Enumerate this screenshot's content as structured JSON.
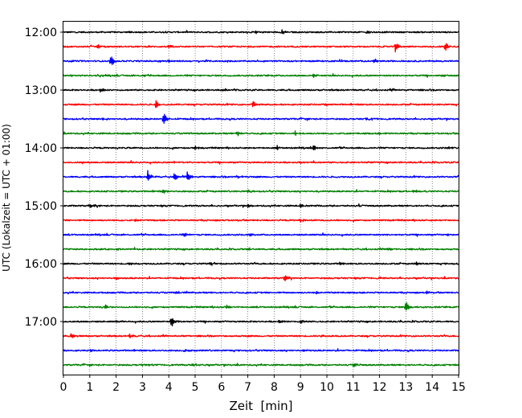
{
  "chart_data": {
    "type": "line",
    "title": "",
    "xlabel": "Zeit  [min]",
    "ylabel": "UTC (Lokalzeit = UTC + 01:00)",
    "xlim": [
      0,
      15
    ],
    "x_ticks": [
      0,
      1,
      2,
      3,
      4,
      5,
      6,
      7,
      8,
      9,
      10,
      11,
      12,
      13,
      14,
      15
    ],
    "y_tick_labels": [
      "12:00",
      "13:00",
      "14:00",
      "15:00",
      "16:00",
      "17:00"
    ],
    "grid": "vertical-dotted",
    "trace_colors": [
      "#000000",
      "#ff0000",
      "#0000ff",
      "#008000"
    ],
    "traces": [
      {
        "start": "12:00",
        "color": "#000000",
        "events": [
          {
            "t": 2.5,
            "amp": 0.22
          },
          {
            "t": 7.3,
            "amp": 0.3
          },
          {
            "t": 8.3,
            "amp": 0.35
          },
          {
            "t": 11.5,
            "amp": 0.25
          },
          {
            "t": 15.0,
            "amp": 0.3
          }
        ]
      },
      {
        "start": "12:15",
        "color": "#ff0000",
        "events": [
          {
            "t": 1.3,
            "amp": 0.3
          },
          {
            "t": 4.0,
            "amp": 0.2
          },
          {
            "t": 12.6,
            "amp": 0.7
          },
          {
            "t": 14.5,
            "amp": 0.75
          }
        ]
      },
      {
        "start": "12:30",
        "color": "#0000ff",
        "events": [
          {
            "t": 1.8,
            "amp": 0.95
          },
          {
            "t": 4.0,
            "amp": 0.2
          },
          {
            "t": 11.8,
            "amp": 0.3
          }
        ]
      },
      {
        "start": "12:45",
        "color": "#008000",
        "events": [
          {
            "t": 3.0,
            "amp": 0.2
          },
          {
            "t": 9.5,
            "amp": 0.2
          },
          {
            "t": 14.4,
            "amp": 0.2
          }
        ]
      },
      {
        "start": "13:00",
        "color": "#000000",
        "events": [
          {
            "t": 1.4,
            "amp": 0.35
          },
          {
            "t": 6.0,
            "amp": 0.2
          },
          {
            "t": 12.5,
            "amp": 0.25
          }
        ]
      },
      {
        "start": "13:15",
        "color": "#ff0000",
        "events": [
          {
            "t": 3.5,
            "amp": 0.75
          },
          {
            "t": 7.2,
            "amp": 0.45
          },
          {
            "t": 10.0,
            "amp": 0.2
          }
        ]
      },
      {
        "start": "13:30",
        "color": "#0000ff",
        "events": [
          {
            "t": 1.5,
            "amp": 0.2
          },
          {
            "t": 3.8,
            "amp": 0.95
          },
          {
            "t": 11.5,
            "amp": 0.2
          }
        ]
      },
      {
        "start": "13:45",
        "color": "#008000",
        "events": [
          {
            "t": 6.6,
            "amp": 0.35
          },
          {
            "t": 8.8,
            "amp": 0.35
          },
          {
            "t": 12.0,
            "amp": 0.2
          }
        ]
      },
      {
        "start": "14:00",
        "color": "#000000",
        "events": [
          {
            "t": 5.0,
            "amp": 0.25
          },
          {
            "t": 8.1,
            "amp": 0.3
          },
          {
            "t": 9.5,
            "amp": 0.35
          },
          {
            "t": 14.6,
            "amp": 0.25
          }
        ]
      },
      {
        "start": "14:15",
        "color": "#ff0000",
        "events": [
          {
            "t": 4.2,
            "amp": 0.12
          },
          {
            "t": 9.0,
            "amp": 0.12
          }
        ]
      },
      {
        "start": "14:30",
        "color": "#0000ff",
        "events": [
          {
            "t": 3.2,
            "amp": 0.9
          },
          {
            "t": 4.2,
            "amp": 0.75
          },
          {
            "t": 4.7,
            "amp": 0.7
          },
          {
            "t": 6.6,
            "amp": 0.2
          }
        ]
      },
      {
        "start": "14:45",
        "color": "#008000",
        "events": [
          {
            "t": 3.8,
            "amp": 0.25
          },
          {
            "t": 7.0,
            "amp": 0.25
          },
          {
            "t": 13.3,
            "amp": 0.3
          }
        ]
      },
      {
        "start": "15:00",
        "color": "#000000",
        "events": [
          {
            "t": 1.0,
            "amp": 0.25
          },
          {
            "t": 7.0,
            "amp": 0.25
          },
          {
            "t": 9.0,
            "amp": 0.2
          },
          {
            "t": 11.2,
            "amp": 0.25
          }
        ]
      },
      {
        "start": "15:15",
        "color": "#ff0000",
        "events": [
          {
            "t": 2.7,
            "amp": 0.2
          },
          {
            "t": 9.0,
            "amp": 0.2
          }
        ]
      },
      {
        "start": "15:30",
        "color": "#0000ff",
        "events": [
          {
            "t": 4.6,
            "amp": 0.3
          },
          {
            "t": 7.1,
            "amp": 0.3
          },
          {
            "t": 14.6,
            "amp": 0.2
          }
        ]
      },
      {
        "start": "15:45",
        "color": "#008000",
        "events": [
          {
            "t": 2.0,
            "amp": 0.2
          },
          {
            "t": 7.0,
            "amp": 0.2
          },
          {
            "t": 12.3,
            "amp": 0.25
          }
        ]
      },
      {
        "start": "16:00",
        "color": "#000000",
        "events": [
          {
            "t": 2.5,
            "amp": 0.25
          },
          {
            "t": 5.6,
            "amp": 0.25
          },
          {
            "t": 10.5,
            "amp": 0.25
          },
          {
            "t": 13.4,
            "amp": 0.25
          }
        ]
      },
      {
        "start": "16:15",
        "color": "#ff0000",
        "events": [
          {
            "t": 2.0,
            "amp": 0.2
          },
          {
            "t": 8.4,
            "amp": 0.5
          },
          {
            "t": 12.0,
            "amp": 0.2
          }
        ]
      },
      {
        "start": "16:30",
        "color": "#0000ff",
        "events": [
          {
            "t": 4.3,
            "amp": 0.2
          },
          {
            "t": 9.6,
            "amp": 0.2
          },
          {
            "t": 13.8,
            "amp": 0.2
          }
        ]
      },
      {
        "start": "16:45",
        "color": "#008000",
        "events": [
          {
            "t": 1.6,
            "amp": 0.4
          },
          {
            "t": 6.2,
            "amp": 0.3
          },
          {
            "t": 13.0,
            "amp": 0.95
          }
        ]
      },
      {
        "start": "17:00",
        "color": "#000000",
        "events": [
          {
            "t": 2.0,
            "amp": 0.2
          },
          {
            "t": 4.1,
            "amp": 1.0
          },
          {
            "t": 8.2,
            "amp": 0.3
          },
          {
            "t": 9.0,
            "amp": 0.3
          }
        ]
      },
      {
        "start": "17:15",
        "color": "#ff0000",
        "events": [
          {
            "t": 0.3,
            "amp": 0.3
          },
          {
            "t": 2.5,
            "amp": 0.35
          },
          {
            "t": 9.8,
            "amp": 0.2
          }
        ]
      },
      {
        "start": "17:30",
        "color": "#0000ff",
        "events": [
          {
            "t": 1.0,
            "amp": 0.25
          },
          {
            "t": 4.6,
            "amp": 0.25
          },
          {
            "t": 9.1,
            "amp": 0.2
          }
        ]
      },
      {
        "start": "17:45",
        "color": "#008000",
        "events": [
          {
            "t": 3.0,
            "amp": 0.15
          },
          {
            "t": 4.9,
            "amp": 0.2
          },
          {
            "t": 11.0,
            "amp": 0.3
          }
        ]
      }
    ]
  }
}
